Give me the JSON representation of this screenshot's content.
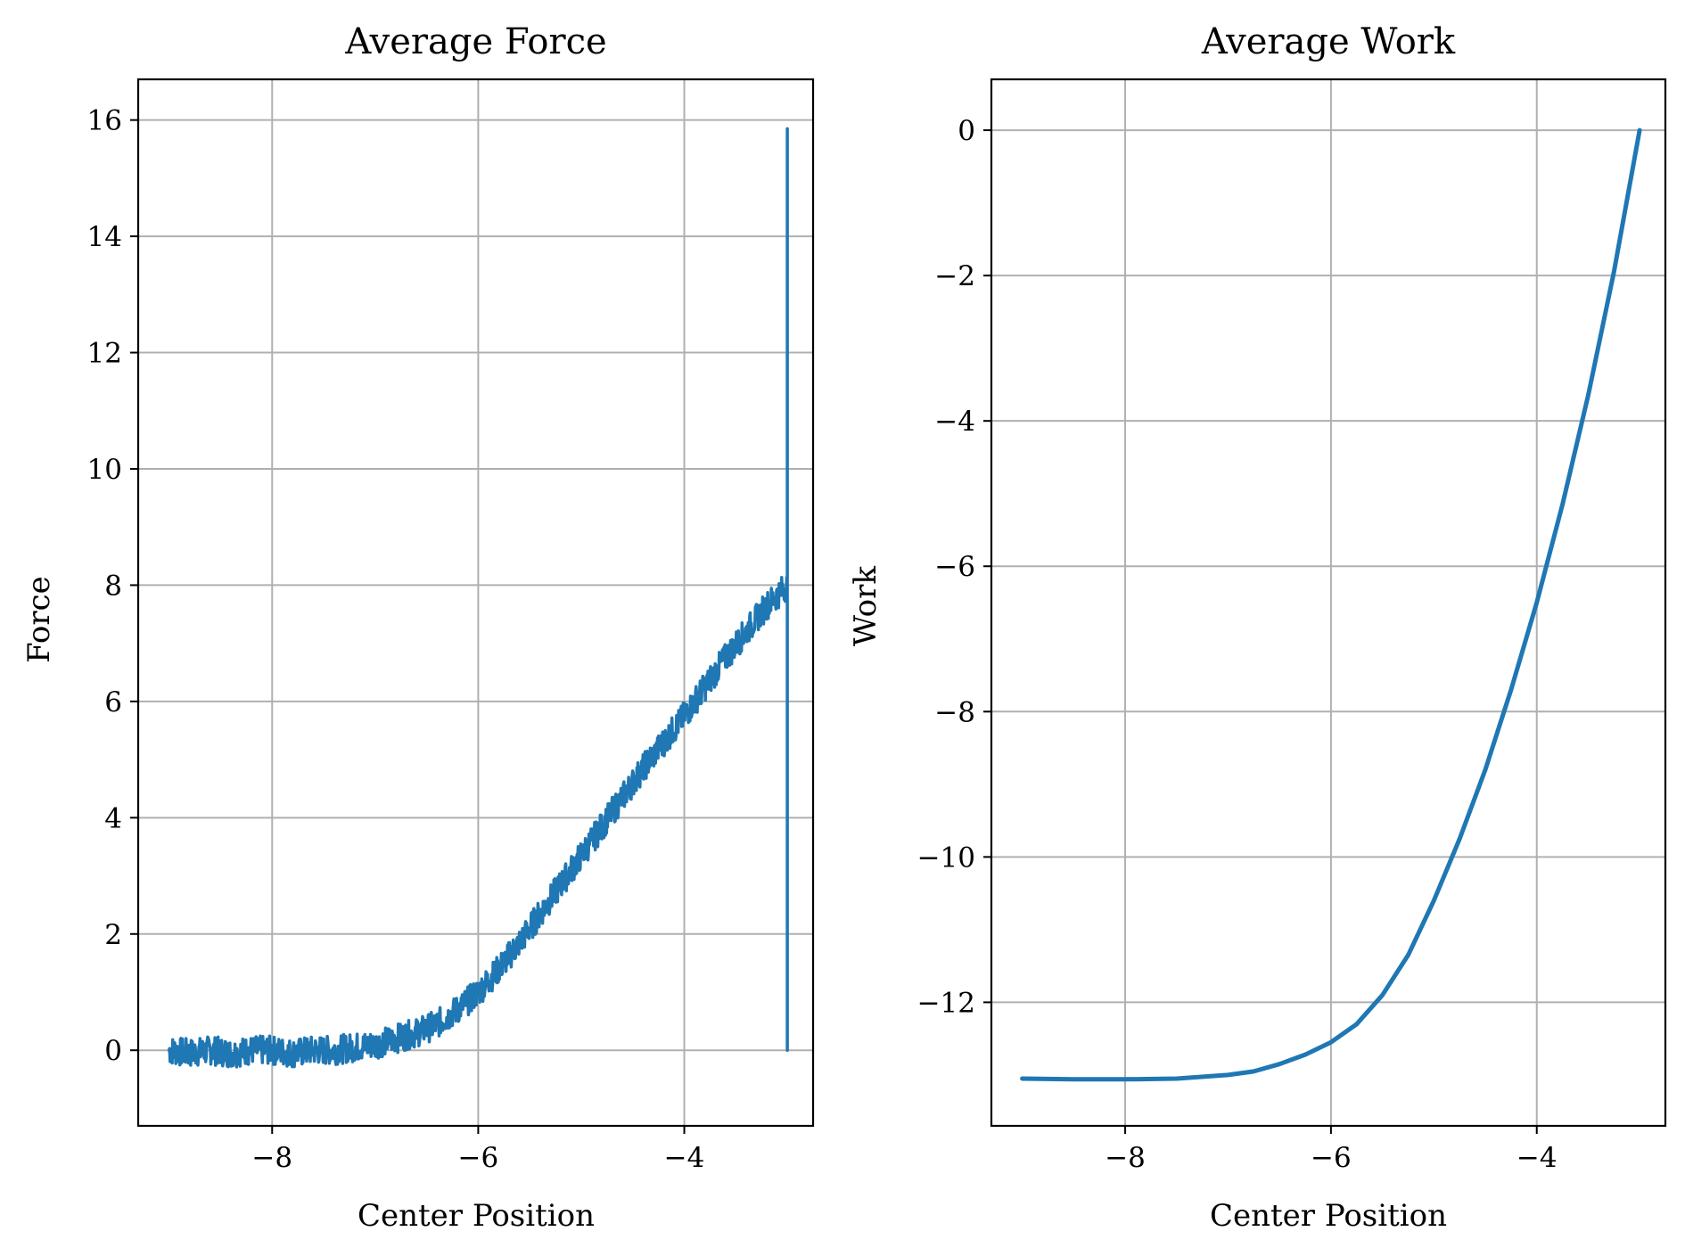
{
  "chart_data": [
    {
      "type": "line",
      "title": "Average Force",
      "xlabel": "Center Position",
      "ylabel": "Force",
      "xlim": [
        -9.3,
        -2.75
      ],
      "ylim": [
        -1.3,
        16.7
      ],
      "xticks": [
        -8,
        -6,
        -4
      ],
      "xtick_labels": [
        "−8",
        "−6",
        "−4"
      ],
      "yticks": [
        0,
        2,
        4,
        6,
        8,
        10,
        12,
        14,
        16
      ],
      "ytick_labels": [
        "0",
        "2",
        "4",
        "6",
        "8",
        "10",
        "12",
        "14",
        "16"
      ],
      "grid": true,
      "color": "#1f77b4",
      "series": [
        {
          "x": [
            -9.0,
            -8.8,
            -8.6,
            -8.4,
            -8.2,
            -8.0,
            -7.8,
            -7.6,
            -7.4,
            -7.2,
            -7.0,
            -6.8,
            -6.6,
            -6.4,
            -6.2,
            -6.0,
            -5.8,
            -5.6,
            -5.4,
            -5.2,
            -5.0,
            -4.8,
            -4.6,
            -4.4,
            -4.2,
            -4.0,
            -3.8,
            -3.6,
            -3.4,
            -3.2,
            -3.0,
            -3.0,
            -3.0
          ],
          "y": [
            0.0,
            -0.05,
            0.0,
            -0.05,
            0.0,
            0.0,
            -0.05,
            0.0,
            0.0,
            0.05,
            0.1,
            0.2,
            0.3,
            0.45,
            0.7,
            1.0,
            1.4,
            1.85,
            2.35,
            2.85,
            3.35,
            3.85,
            4.35,
            4.85,
            5.3,
            5.75,
            6.25,
            6.75,
            7.2,
            7.65,
            8.0,
            15.85,
            0.0
          ],
          "noise_band": 0.25
        }
      ]
    },
    {
      "type": "line",
      "title": "Average Work",
      "xlabel": "Center Position",
      "ylabel": "Work",
      "xlim": [
        -9.3,
        -2.75
      ],
      "ylim": [
        -13.7,
        0.7
      ],
      "xticks": [
        -8,
        -6,
        -4
      ],
      "xtick_labels": [
        "−8",
        "−6",
        "−4"
      ],
      "yticks": [
        0,
        -2,
        -4,
        -6,
        -8,
        -10,
        -12
      ],
      "ytick_labels": [
        "0",
        "−2",
        "−4",
        "−6",
        "−8",
        "−10",
        "−12"
      ],
      "grid": true,
      "color": "#1f77b4",
      "series": [
        {
          "x": [
            -9.0,
            -8.5,
            -8.0,
            -7.5,
            -7.0,
            -6.75,
            -6.5,
            -6.25,
            -6.0,
            -5.75,
            -5.5,
            -5.25,
            -5.0,
            -4.75,
            -4.5,
            -4.25,
            -4.0,
            -3.75,
            -3.5,
            -3.25,
            -3.0
          ],
          "y": [
            -13.05,
            -13.06,
            -13.06,
            -13.05,
            -13.0,
            -12.95,
            -12.85,
            -12.72,
            -12.55,
            -12.3,
            -11.9,
            -11.35,
            -10.6,
            -9.75,
            -8.8,
            -7.7,
            -6.5,
            -5.15,
            -3.65,
            -1.95,
            0.0
          ]
        }
      ]
    }
  ]
}
